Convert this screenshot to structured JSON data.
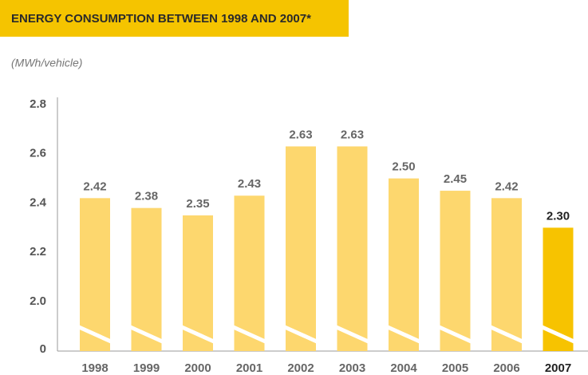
{
  "chart_data": {
    "type": "bar",
    "title": "ENERGY CONSUMPTION BETWEEN 1998 AND 2007*",
    "y_label": "(MWh/vehicle)",
    "categories": [
      "1998",
      "1999",
      "2000",
      "2001",
      "2002",
      "2003",
      "2004",
      "2005",
      "2006",
      "2007"
    ],
    "values": [
      2.42,
      2.38,
      2.35,
      2.43,
      2.63,
      2.63,
      2.5,
      2.45,
      2.42,
      2.3
    ],
    "value_labels": [
      "2.42",
      "2.38",
      "2.35",
      "2.43",
      "2.63",
      "2.63",
      "2.50",
      "2.45",
      "2.42",
      "2.30"
    ],
    "color": "#fdd76e",
    "highlight_color": "#f7c300",
    "highlight_category": "2007",
    "ylim": [
      0,
      2.8
    ],
    "axis_break": [
      0,
      2
    ],
    "yticks": [
      0,
      {
        "value": 2,
        "label": "2.0"
      },
      2.2,
      2.4,
      2.6,
      2.8
    ],
    "grid": false
  }
}
